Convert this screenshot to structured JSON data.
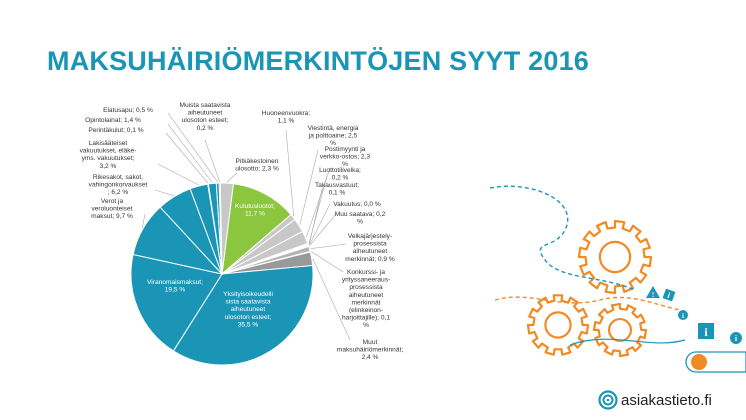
{
  "title": "MAKSUHÄIRIÖMERKINTÖJEN SYYT 2016",
  "logo": {
    "text": "asiakastieto.fi",
    "icon": "swirl-logo-icon"
  },
  "decoration": {
    "icons": [
      "gear-icon",
      "info-icon"
    ],
    "colors": {
      "orange": "#f08a24",
      "teal": "#1a95b6"
    }
  },
  "chart_data": {
    "type": "pie",
    "unit": "%",
    "slices": [
      {
        "label": [
          "Kulutusluotot;",
          "11,7 %"
        ],
        "value": 11.7,
        "color": "#8cc63f"
      },
      {
        "label": [
          "Huoneenvuokra;",
          "1,1 %"
        ],
        "value": 1.1,
        "color": "#c8c8c8"
      },
      {
        "label": [
          "Viestintä, energia",
          "ja polttoaine; 2,5",
          "%"
        ],
        "value": 2.5,
        "color": "#c8c8c8"
      },
      {
        "label": [
          "Postimyynti ja",
          "verkko-ostos; 2,3",
          "%"
        ],
        "value": 2.3,
        "color": "#c8c8c8"
      },
      {
        "label": [
          "Luottotilivelka;",
          "0,2 %"
        ],
        "value": 0.2,
        "color": "#c8c8c8"
      },
      {
        "label": [
          "Takausvastuut;",
          "0,1 %"
        ],
        "value": 0.1,
        "color": "#c8c8c8"
      },
      {
        "label": [
          "Vakuutus; 0,0 %"
        ],
        "value": 0.05,
        "color": "#c8c8c8"
      },
      {
        "label": [
          "Muu saatava; 0,2",
          "%"
        ],
        "value": 0.2,
        "color": "#c8c8c8"
      },
      {
        "label": [
          "Velkajärjestely-",
          "prosessista",
          "aiheutuneet",
          "merkinnät; 0,9 %"
        ],
        "value": 0.9,
        "color": "#b4b4b4"
      },
      {
        "label": [
          "Konkurssi- ja",
          "yrityssaneeraus-",
          "prosessista",
          "aiheutuneet",
          "merkinnät",
          "(elinkeinon-",
          "harjoittajille); 0,1",
          "%"
        ],
        "value": 0.1,
        "color": "#b4b4b4"
      },
      {
        "label": [
          "Muut",
          "maksuhäiriömerkinnät;",
          "2,4 %"
        ],
        "value": 2.4,
        "color": "#999999"
      },
      {
        "label": [
          "Yksityisoikeudelli",
          "sista saatavista",
          "aiheutuneet",
          "ulosoton esteet;",
          "35,5 %"
        ],
        "value": 35.5,
        "color": "#1a95b6"
      },
      {
        "label": [
          "Viranomaismaksut;",
          "19,5 %"
        ],
        "value": 19.5,
        "color": "#1a95b6"
      },
      {
        "label": [
          "Verot ja",
          "veroluonteiset",
          "maksut; 9,7 %"
        ],
        "value": 9.7,
        "color": "#1a95b6"
      },
      {
        "label": [
          "Rikesakot, sakot,",
          "vahingonkorvaukset",
          "; 6,2 %"
        ],
        "value": 6.2,
        "color": "#1a95b6"
      },
      {
        "label": [
          "Lakisääteiset",
          "vakuutukset, eläke-",
          "yms. vakuutukset;",
          "3,2 %"
        ],
        "value": 3.2,
        "color": "#1a95b6"
      },
      {
        "label": [
          "Perintäkulut; 0,1 %"
        ],
        "value": 0.1,
        "color": "#1a95b6"
      },
      {
        "label": [
          "Opintolainat; 1,4 %"
        ],
        "value": 1.4,
        "color": "#1a95b6"
      },
      {
        "label": [
          "Elatusapu; 0,5 %"
        ],
        "value": 0.5,
        "color": "#1a95b6"
      },
      {
        "label": [
          "Muista saatavista",
          "aiheutuneet",
          "ulosoton esteet;",
          "0,2 %"
        ],
        "value": 0.2,
        "color": "#1a95b6"
      },
      {
        "label": [
          "Pitkäkestoinen",
          "ulosotto; 2,3 %"
        ],
        "value": 2.3,
        "color": "#c8c8c8"
      }
    ]
  }
}
